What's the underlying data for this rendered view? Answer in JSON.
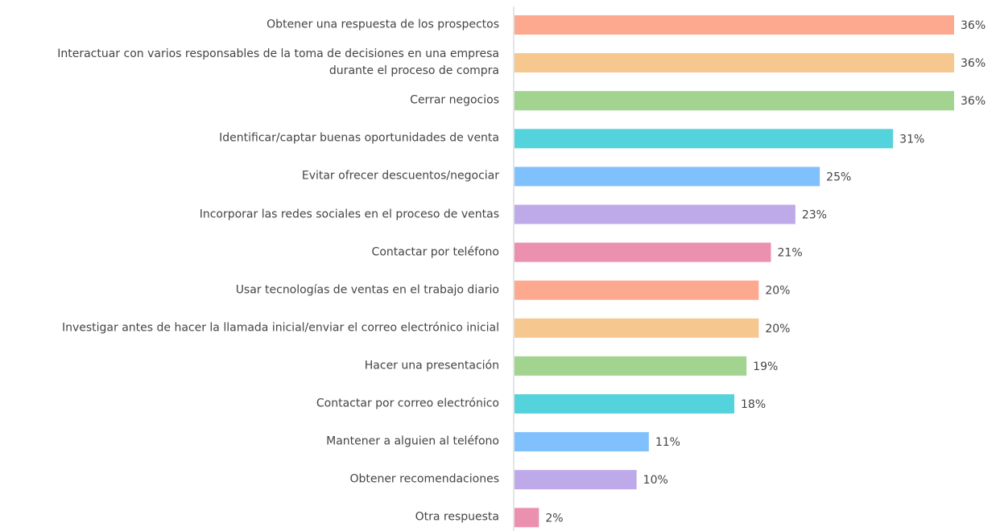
{
  "chart_data": {
    "type": "barh",
    "categories": [
      "Obtener una respuesta de los prospectos",
      "Interactuar con varios responsables de la toma de decisiones en una empresa\ndurante el proceso de compra",
      "Cerrar negocios",
      "Identificar/captar buenas oportunidades de venta",
      "Evitar ofrecer descuentos/negociar",
      "Incorporar las redes sociales en el proceso de ventas",
      "Contactar por teléfono",
      "Usar tecnologías de ventas en el trabajo diario",
      "Investigar antes de hacer la llamada inicial/enviar el correo electrónico inicial",
      "Hacer una presentación",
      "Contactar por correo electrónico",
      "Mantener a alguien al teléfono",
      "Obtener recomendaciones",
      "Otra respuesta"
    ],
    "values": [
      36,
      36,
      36,
      31,
      25,
      23,
      21,
      20,
      20,
      19,
      18,
      11,
      10,
      2
    ],
    "value_labels": [
      "36%",
      "36%",
      "36%",
      "31%",
      "25%",
      "23%",
      "21%",
      "20%",
      "20%",
      "19%",
      "18%",
      "11%",
      "10%",
      "2%"
    ],
    "colors": [
      "#fda98f",
      "#f6c890",
      "#a2d48f",
      "#55d3dc",
      "#80c1fd",
      "#bea9e9",
      "#ec90b0",
      "#fda98f",
      "#f6c890",
      "#a2d48f",
      "#55d3dc",
      "#80c1fd",
      "#bea9e9",
      "#ec90b0"
    ]
  }
}
